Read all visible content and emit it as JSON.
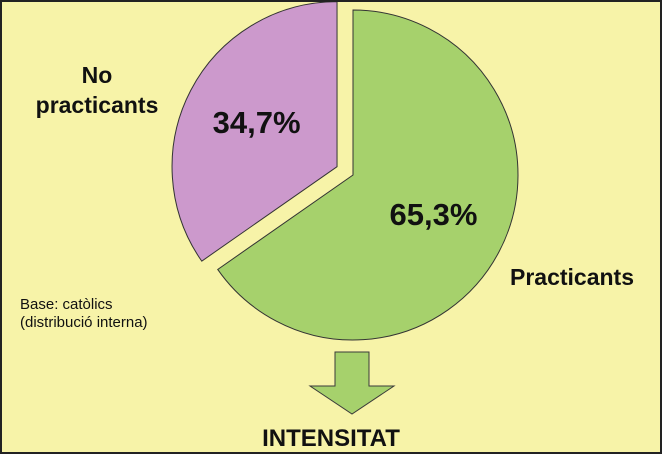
{
  "chart_data": {
    "type": "pie",
    "categories": [
      "Practicants",
      "No practicants"
    ],
    "values": [
      65.3,
      34.7
    ],
    "value_labels": [
      "65,3%",
      "34,7%"
    ],
    "colors": [
      "#a6d16c",
      "#cc99cc"
    ],
    "annotations": [
      "Base: catòlics",
      "(distribució interna)",
      "INTENSITAT"
    ]
  }
}
